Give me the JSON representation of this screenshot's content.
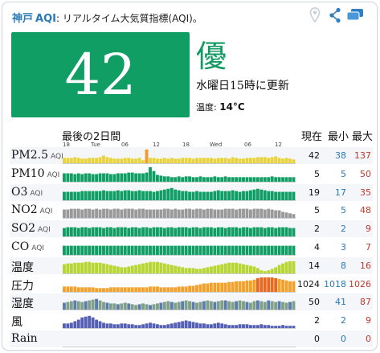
{
  "header": {
    "city": "神戸",
    "aqi_label": "AQI",
    "desc": ": リアルタイム大気質指標(AQI)。"
  },
  "icons": [
    "location-pin-icon",
    "share-icon",
    "embed-icon"
  ],
  "aqi": {
    "value": "42",
    "level": "優",
    "updated": "水曜日15時に更新",
    "temp_label": "温度:",
    "temp_value": "14°C",
    "box_color": "#109e64"
  },
  "table": {
    "period_label": "最後の2日間",
    "col_current": "現在",
    "col_min": "最小",
    "col_max": "最大",
    "axis_ticks": [
      "18",
      "Tue",
      "06",
      "12",
      "18",
      "Wed",
      "06",
      "12"
    ],
    "rows": [
      {
        "label": "PM2.5",
        "unit": "AQI",
        "current": "42",
        "min": "38",
        "max": "137",
        "color": "#e8d43a"
      },
      {
        "label": "PM10",
        "unit": "AQI",
        "current": "5",
        "min": "5",
        "max": "50",
        "color": "#109e64"
      },
      {
        "label": "O3",
        "unit": "AQI",
        "current": "19",
        "min": "17",
        "max": "35",
        "color": "#109e64"
      },
      {
        "label": "NO2",
        "unit": "AQI",
        "current": "5",
        "min": "5",
        "max": "48",
        "color": "#999999"
      },
      {
        "label": "SO2",
        "unit": "AQI",
        "current": "2",
        "min": "2",
        "max": "9",
        "color": "#109e64"
      },
      {
        "label": "CO",
        "unit": "AQI",
        "current": "4",
        "min": "3",
        "max": "7",
        "color": "#109e64"
      },
      {
        "label": "温度",
        "unit": "",
        "current": "14",
        "min": "8",
        "max": "16",
        "color": "#b7d631"
      },
      {
        "label": "圧力",
        "unit": "",
        "current": "1024",
        "min": "1018",
        "max": "1026",
        "color": "#f3a12b"
      },
      {
        "label": "湿度",
        "unit": "",
        "current": "50",
        "min": "41",
        "max": "87",
        "color": "#7f9f86"
      },
      {
        "label": "風",
        "unit": "",
        "current": "2",
        "min": "2",
        "max": "9",
        "color": "#5560b5"
      },
      {
        "label": "Rain",
        "unit": "",
        "current": "0",
        "min": "0",
        "max": "0",
        "color": "#5560b5"
      }
    ]
  }
}
